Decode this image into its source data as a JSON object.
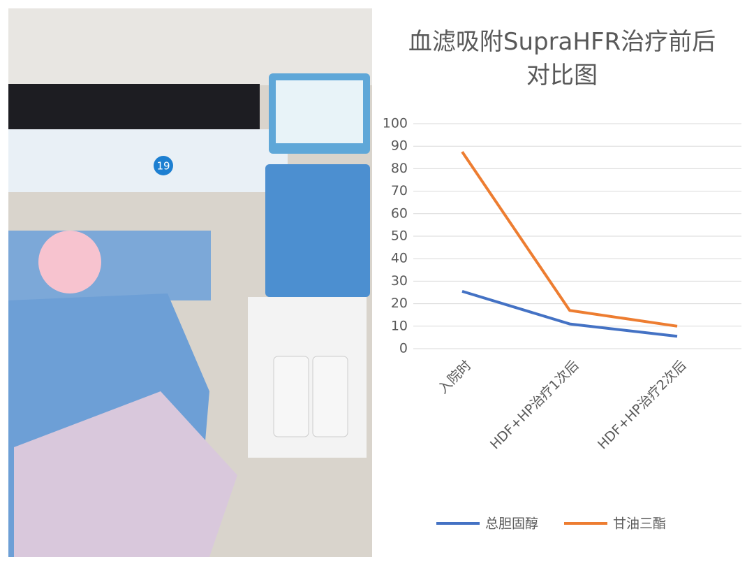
{
  "photo": {
    "room_badge": "19"
  },
  "chart_data": {
    "type": "line",
    "title": "血滤吸附SupraHFR治疗前后对比图",
    "categories": [
      "入院时",
      "HDF+HP治疗1次后",
      "HDF+HP治疗2次后"
    ],
    "series": [
      {
        "name": "总胆固醇",
        "color": "#4472c4",
        "values": [
          25.5,
          11,
          5.5
        ]
      },
      {
        "name": "甘油三酯",
        "color": "#ed7d31",
        "values": [
          87.5,
          17,
          10
        ]
      }
    ],
    "ylim": [
      0,
      100
    ],
    "yticks": [
      0,
      10,
      20,
      30,
      40,
      50,
      60,
      70,
      80,
      90,
      100
    ],
    "grid": true,
    "legend": "bottom"
  }
}
